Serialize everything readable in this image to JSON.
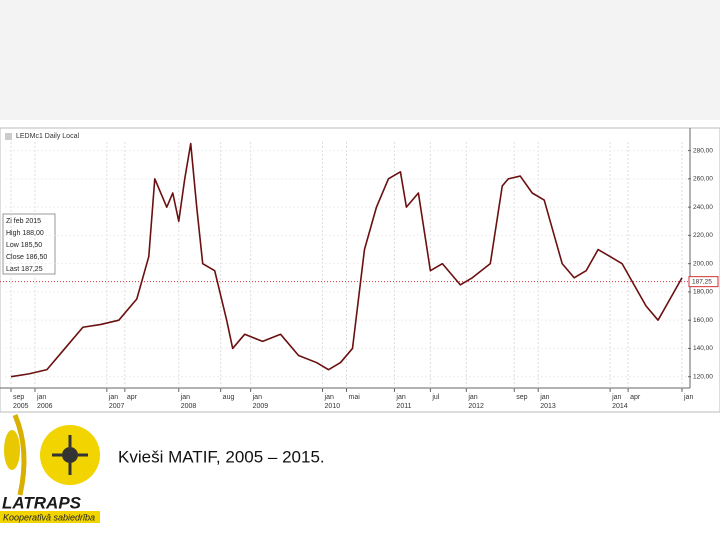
{
  "chart_data": {
    "type": "line",
    "title": "LEDMc1 Daily Local",
    "x": [
      "2005-09",
      "2005-12",
      "2006-03",
      "2006-06",
      "2006-09",
      "2006-12",
      "2007-03",
      "2007-06",
      "2007-08",
      "2007-09",
      "2007-11",
      "2007-12",
      "2008-01",
      "2008-02",
      "2008-03",
      "2008-04",
      "2008-05",
      "2008-07",
      "2008-09",
      "2008-10",
      "2008-12",
      "2009-03",
      "2009-06",
      "2009-09",
      "2009-12",
      "2010-02",
      "2010-04",
      "2010-06",
      "2010-08",
      "2010-10",
      "2010-12",
      "2011-02",
      "2011-03",
      "2011-05",
      "2011-07",
      "2011-09",
      "2011-12",
      "2012-02",
      "2012-05",
      "2012-07",
      "2012-08",
      "2012-10",
      "2012-12",
      "2013-02",
      "2013-04",
      "2013-05",
      "2013-07",
      "2013-09",
      "2013-11",
      "2014-01",
      "2014-03",
      "2014-05",
      "2014-07",
      "2014-09",
      "2014-11",
      "2015-01"
    ],
    "values": [
      120,
      122,
      125,
      140,
      155,
      157,
      160,
      175,
      205,
      260,
      240,
      250,
      230,
      260,
      285,
      240,
      200,
      195,
      160,
      140,
      150,
      145,
      150,
      135,
      130,
      125,
      130,
      140,
      210,
      240,
      260,
      265,
      240,
      250,
      195,
      200,
      185,
      190,
      200,
      255,
      260,
      262,
      250,
      245,
      215,
      200,
      190,
      195,
      210,
      205,
      200,
      185,
      170,
      160,
      175,
      190
    ],
    "color": "#6b1010",
    "xlim": [
      "2005-08",
      "2015-02"
    ],
    "xticks": [
      {
        "value": "2005-09",
        "label": "sep",
        "year": "2005"
      },
      {
        "value": "2006-01",
        "label": "jan",
        "year": "2006"
      },
      {
        "value": "2007-01",
        "label": "jan",
        "year": "2007"
      },
      {
        "value": "2007-04",
        "label": "apr"
      },
      {
        "value": "2008-01",
        "label": "jan",
        "year": "2008"
      },
      {
        "value": "2008-08",
        "label": "aug"
      },
      {
        "value": "2009-01",
        "label": "jan",
        "year": "2009"
      },
      {
        "value": "2010-01",
        "label": "jan",
        "year": "2010"
      },
      {
        "value": "2010-05",
        "label": "mai"
      },
      {
        "value": "2011-01",
        "label": "jan",
        "year": "2011"
      },
      {
        "value": "2011-07",
        "label": "jul"
      },
      {
        "value": "2012-01",
        "label": "jan",
        "year": "2012"
      },
      {
        "value": "2012-09",
        "label": "sep"
      },
      {
        "value": "2013-01",
        "label": "jan",
        "year": "2013"
      },
      {
        "value": "2014-01",
        "label": "jan",
        "year": "2014"
      },
      {
        "value": "2014-04",
        "label": "apr"
      },
      {
        "value": "2015-01",
        "label": "jan"
      }
    ],
    "ylim": [
      112,
      296
    ],
    "yticks": [
      {
        "value": 280,
        "label": "280,00"
      },
      {
        "value": 260,
        "label": "260,00"
      },
      {
        "value": 240,
        "label": "240,00"
      },
      {
        "value": 220,
        "label": "220,00"
      },
      {
        "value": 200,
        "label": "200,00"
      },
      {
        "value": 180,
        "label": "180,00"
      },
      {
        "value": 160,
        "label": "160,00"
      },
      {
        "value": 140,
        "label": "140,00"
      },
      {
        "value": 120,
        "label": "120,00"
      }
    ],
    "last": {
      "value": 187.25,
      "label": "187,25"
    },
    "info": [
      "Zi feb 2015",
      "High 188,00",
      "Low 185,50",
      "Close 186,50",
      "Last 187,25"
    ],
    "grid": true
  },
  "caption": "Kvieši MATIF, 2005 – 2015.",
  "logo": {
    "name": "LATRAPS",
    "subtitle": "Kooperatīvā sabiedrība"
  }
}
